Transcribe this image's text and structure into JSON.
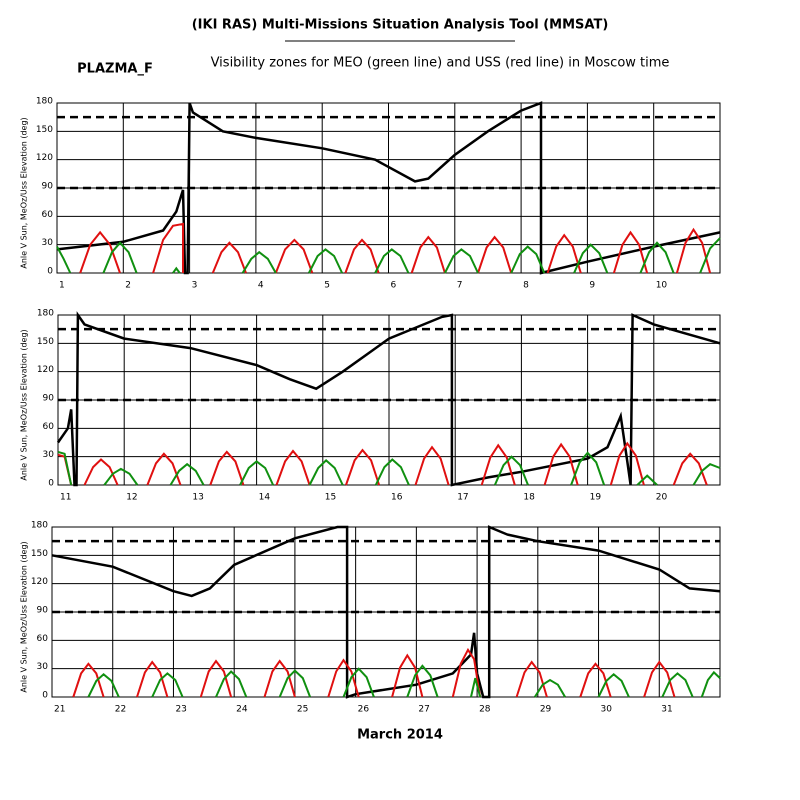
{
  "header": {
    "title": "(IKI RAS) Multi-Missions Situation Analysis Tool (MMSAT)",
    "label": "PLAZMA_F",
    "subtitle": "Visibility zones for MEO (green line) and USS (red line) in Moscow time"
  },
  "footer": "March 2014",
  "chart_data": [
    {
      "type": "line",
      "y_label": "Anle V Sun, MeOz/Uss Elevation (deg)",
      "xlim": [
        1,
        11
      ],
      "xticks": [
        1,
        2,
        3,
        4,
        5,
        6,
        7,
        8,
        9,
        10
      ],
      "ylim": [
        0,
        180
      ],
      "yticks": [
        0,
        30,
        60,
        90,
        120,
        150,
        180
      ],
      "reference_lines": [
        90,
        165
      ],
      "grid": true,
      "series": [
        {
          "color": "#000000",
          "x": [
            1,
            2,
            2.6,
            2.8,
            2.9,
            2.93,
            2.97,
            3.0,
            3.05,
            3.5,
            4,
            5,
            5.8,
            6.4,
            6.6,
            7,
            7.5,
            8,
            8.3,
            8.3,
            9,
            10,
            11
          ],
          "values": [
            25,
            33,
            45,
            65,
            88,
            0,
            0,
            180,
            170,
            150,
            143,
            132,
            120,
            97,
            100,
            125,
            150,
            172,
            180,
            0,
            12,
            28,
            43
          ]
        },
        {
          "color": "#e01010",
          "x": [
            1.35,
            1.5,
            1.65,
            1.8,
            1.95,
            null,
            2.45,
            2.6,
            2.75,
            2.9,
            2.9,
            null,
            3.35,
            3.48,
            3.6,
            3.73,
            3.85,
            null,
            4.3,
            4.44,
            4.58,
            4.72,
            4.85,
            null,
            5.35,
            5.48,
            5.6,
            5.73,
            5.85,
            null,
            6.35,
            6.48,
            6.6,
            6.73,
            6.85,
            null,
            7.35,
            7.48,
            7.6,
            7.73,
            7.85,
            null,
            8.4,
            8.53,
            8.65,
            8.78,
            8.9,
            null,
            9.4,
            9.53,
            9.65,
            9.78,
            9.9,
            null,
            10.35,
            10.48,
            10.6,
            10.73,
            10.85
          ],
          "values": [
            0,
            30,
            43,
            30,
            0,
            null,
            0,
            35,
            50,
            52,
            0,
            null,
            0,
            22,
            32,
            22,
            0,
            null,
            0,
            25,
            35,
            25,
            0,
            null,
            0,
            25,
            35,
            25,
            0,
            null,
            0,
            27,
            38,
            27,
            0,
            null,
            0,
            27,
            38,
            27,
            0,
            null,
            0,
            28,
            40,
            28,
            0,
            null,
            0,
            30,
            43,
            30,
            0,
            null,
            0,
            32,
            46,
            32,
            0
          ]
        },
        {
          "color": "#109010",
          "x": [
            1,
            1.1,
            1.2,
            null,
            1.7,
            1.83,
            1.95,
            2.08,
            2.2,
            null,
            2.75,
            2.8,
            2.85,
            null,
            3.8,
            3.93,
            4.05,
            4.18,
            4.3,
            null,
            4.8,
            4.93,
            5.05,
            5.18,
            5.3,
            null,
            5.8,
            5.93,
            6.05,
            6.18,
            6.3,
            null,
            6.85,
            6.98,
            7.1,
            7.23,
            7.35,
            null,
            7.85,
            7.98,
            8.1,
            8.23,
            8.35,
            null,
            8.8,
            8.93,
            9.05,
            9.18,
            9.3,
            null,
            9.8,
            9.93,
            10.05,
            10.18,
            10.3,
            null,
            10.7,
            10.85,
            11
          ],
          "values": [
            28,
            15,
            0,
            null,
            0,
            22,
            32,
            22,
            0,
            null,
            0,
            5,
            0,
            null,
            0,
            15,
            22,
            15,
            0,
            null,
            0,
            18,
            25,
            18,
            0,
            null,
            0,
            18,
            25,
            18,
            0,
            null,
            0,
            18,
            25,
            18,
            0,
            null,
            0,
            20,
            28,
            20,
            0,
            null,
            0,
            21,
            30,
            21,
            0,
            null,
            0,
            22,
            32,
            22,
            0,
            null,
            0,
            26,
            37
          ]
        }
      ]
    },
    {
      "type": "line",
      "y_label": "Anle V Sun, MeOz/Uss Elevation (deg)",
      "xlim": [
        11,
        21
      ],
      "xticks": [
        11,
        12,
        13,
        14,
        15,
        16,
        17,
        18,
        19,
        20
      ],
      "ylim": [
        0,
        180
      ],
      "yticks": [
        0,
        30,
        60,
        90,
        120,
        150,
        180
      ],
      "reference_lines": [
        90,
        165
      ],
      "grid": true,
      "series": [
        {
          "color": "#000000",
          "x": [
            11,
            11.15,
            11.2,
            11.25,
            11.28,
            11.3,
            11.4,
            12,
            13,
            14,
            14.5,
            14.9,
            15.3,
            16,
            16.8,
            16.95,
            16.95,
            17.5,
            18,
            19,
            19.3,
            19.5,
            19.6,
            19.65,
            19.68,
            20,
            21
          ],
          "values": [
            45,
            60,
            80,
            0,
            0,
            180,
            170,
            155,
            145,
            127,
            112,
            102,
            120,
            155,
            178,
            180,
            0,
            8,
            14,
            28,
            40,
            73,
            25,
            0,
            180,
            170,
            150
          ]
        },
        {
          "color": "#e01010",
          "x": [
            11,
            11.1,
            11.2,
            null,
            11.4,
            11.53,
            11.65,
            11.78,
            11.9,
            null,
            12.35,
            12.48,
            12.6,
            12.73,
            12.85,
            null,
            13.3,
            13.43,
            13.55,
            13.68,
            13.8,
            null,
            14.3,
            14.43,
            14.55,
            14.68,
            14.8,
            null,
            15.35,
            15.48,
            15.6,
            15.73,
            15.85,
            null,
            16.4,
            16.53,
            16.65,
            16.78,
            16.9,
            null,
            17.4,
            17.53,
            17.65,
            17.78,
            17.9,
            null,
            18.35,
            18.48,
            18.6,
            18.73,
            18.85,
            null,
            19.35,
            19.48,
            19.6,
            19.73,
            19.85,
            null,
            20.3,
            20.43,
            20.55,
            20.68,
            20.8
          ],
          "values": [
            32,
            30,
            0,
            null,
            0,
            19,
            27,
            19,
            0,
            null,
            0,
            23,
            33,
            23,
            0,
            null,
            0,
            25,
            35,
            25,
            0,
            null,
            0,
            25,
            36,
            25,
            0,
            null,
            0,
            26,
            37,
            26,
            0,
            null,
            0,
            28,
            40,
            28,
            0,
            null,
            0,
            29,
            42,
            29,
            0,
            null,
            0,
            30,
            43,
            30,
            0,
            null,
            0,
            31,
            44,
            31,
            0,
            null,
            0,
            23,
            33,
            23,
            0
          ]
        },
        {
          "color": "#109010",
          "x": [
            11,
            11.1,
            11.2,
            null,
            11.7,
            11.83,
            11.95,
            12.08,
            12.2,
            null,
            12.7,
            12.83,
            12.95,
            13.08,
            13.2,
            null,
            13.75,
            13.88,
            14,
            14.13,
            14.25,
            null,
            14.8,
            14.93,
            15.05,
            15.18,
            15.3,
            null,
            15.8,
            15.93,
            16.05,
            16.18,
            16.3,
            null,
            17.6,
            17.73,
            17.85,
            17.98,
            18.1,
            null,
            18.75,
            18.88,
            19,
            19.13,
            19.25,
            null,
            19.75,
            19.9,
            20.05,
            null,
            20.6,
            20.73,
            20.85,
            21
          ],
          "values": [
            35,
            33,
            0,
            null,
            0,
            12,
            17,
            12,
            0,
            null,
            0,
            15,
            22,
            15,
            0,
            null,
            0,
            18,
            25,
            18,
            0,
            null,
            0,
            18,
            26,
            18,
            0,
            null,
            0,
            19,
            27,
            19,
            0,
            null,
            0,
            21,
            30,
            21,
            0,
            null,
            0,
            24,
            34,
            24,
            0,
            null,
            0,
            10,
            0,
            null,
            0,
            15,
            22,
            18
          ]
        }
      ]
    },
    {
      "type": "line",
      "y_label": "Anle V Sun, MeOz/Uss Elevation (deg)",
      "xlim": [
        21,
        32
      ],
      "xticks": [
        21,
        22,
        23,
        24,
        25,
        26,
        27,
        28,
        29,
        30,
        31
      ],
      "ylim": [
        0,
        180
      ],
      "yticks": [
        0,
        30,
        60,
        90,
        120,
        150,
        180
      ],
      "reference_lines": [
        90,
        165
      ],
      "grid": true,
      "series": [
        {
          "color": "#000000",
          "x": [
            21,
            22,
            23,
            23.3,
            23.6,
            24,
            25,
            25.7,
            25.86,
            25.86,
            26,
            27,
            27.6,
            27.9,
            27.95,
            28,
            28.1,
            28.2,
            28.2,
            28.5,
            29,
            30,
            31,
            31.5,
            32
          ],
          "values": [
            150,
            138,
            112,
            107,
            115,
            140,
            168,
            180,
            180,
            0,
            3,
            13,
            25,
            45,
            68,
            25,
            0,
            0,
            180,
            172,
            165,
            155,
            135,
            115,
            112
          ]
        },
        {
          "color": "#e01010",
          "x": [
            21.35,
            21.48,
            21.6,
            21.73,
            21.85,
            null,
            22.4,
            22.53,
            22.65,
            22.78,
            22.9,
            null,
            23.45,
            23.58,
            23.7,
            23.83,
            23.95,
            null,
            24.5,
            24.63,
            24.75,
            24.88,
            25,
            null,
            25.55,
            25.68,
            25.8,
            25.93,
            26.05,
            null,
            26.6,
            26.73,
            26.85,
            26.98,
            27.1,
            null,
            27.6,
            27.73,
            27.85,
            27.95,
            28.05,
            null,
            28.65,
            28.78,
            28.9,
            29.03,
            29.15,
            null,
            29.7,
            29.83,
            29.95,
            30.08,
            30.2,
            null,
            30.75,
            30.88,
            31,
            31.13,
            31.25
          ],
          "values": [
            0,
            25,
            35,
            25,
            0,
            null,
            0,
            26,
            37,
            26,
            0,
            null,
            0,
            27,
            38,
            27,
            0,
            null,
            0,
            27,
            38,
            27,
            0,
            null,
            0,
            27,
            39,
            27,
            0,
            null,
            0,
            31,
            44,
            31,
            0,
            null,
            0,
            35,
            50,
            40,
            0,
            null,
            0,
            26,
            37,
            26,
            0,
            null,
            0,
            25,
            35,
            25,
            0,
            null,
            0,
            26,
            37,
            26,
            0
          ]
        },
        {
          "color": "#109010",
          "x": [
            21.6,
            21.73,
            21.85,
            21.98,
            22.1,
            null,
            22.65,
            22.78,
            22.9,
            23.03,
            23.15,
            null,
            23.7,
            23.83,
            23.95,
            24.08,
            24.2,
            null,
            24.75,
            24.88,
            25,
            25.13,
            25.25,
            null,
            25.8,
            25.93,
            26.05,
            26.18,
            26.3,
            null,
            26.85,
            26.98,
            27.1,
            27.23,
            27.35,
            null,
            27.9,
            27.97,
            28.05,
            null,
            28.95,
            29.08,
            29.2,
            29.33,
            29.45,
            null,
            30,
            30.13,
            30.25,
            30.38,
            30.5,
            null,
            31.05,
            31.18,
            31.3,
            31.43,
            31.55,
            null,
            31.7,
            31.8,
            31.9,
            32
          ],
          "values": [
            0,
            17,
            24,
            17,
            0,
            null,
            0,
            18,
            25,
            18,
            0,
            null,
            0,
            19,
            27,
            19,
            0,
            null,
            0,
            20,
            28,
            20,
            0,
            null,
            0,
            21,
            30,
            21,
            0,
            null,
            0,
            23,
            33,
            23,
            0,
            null,
            0,
            20,
            0,
            null,
            0,
            13,
            18,
            13,
            0,
            null,
            0,
            17,
            24,
            17,
            0,
            null,
            0,
            18,
            25,
            18,
            0,
            null,
            0,
            18,
            26,
            20
          ]
        }
      ]
    }
  ]
}
